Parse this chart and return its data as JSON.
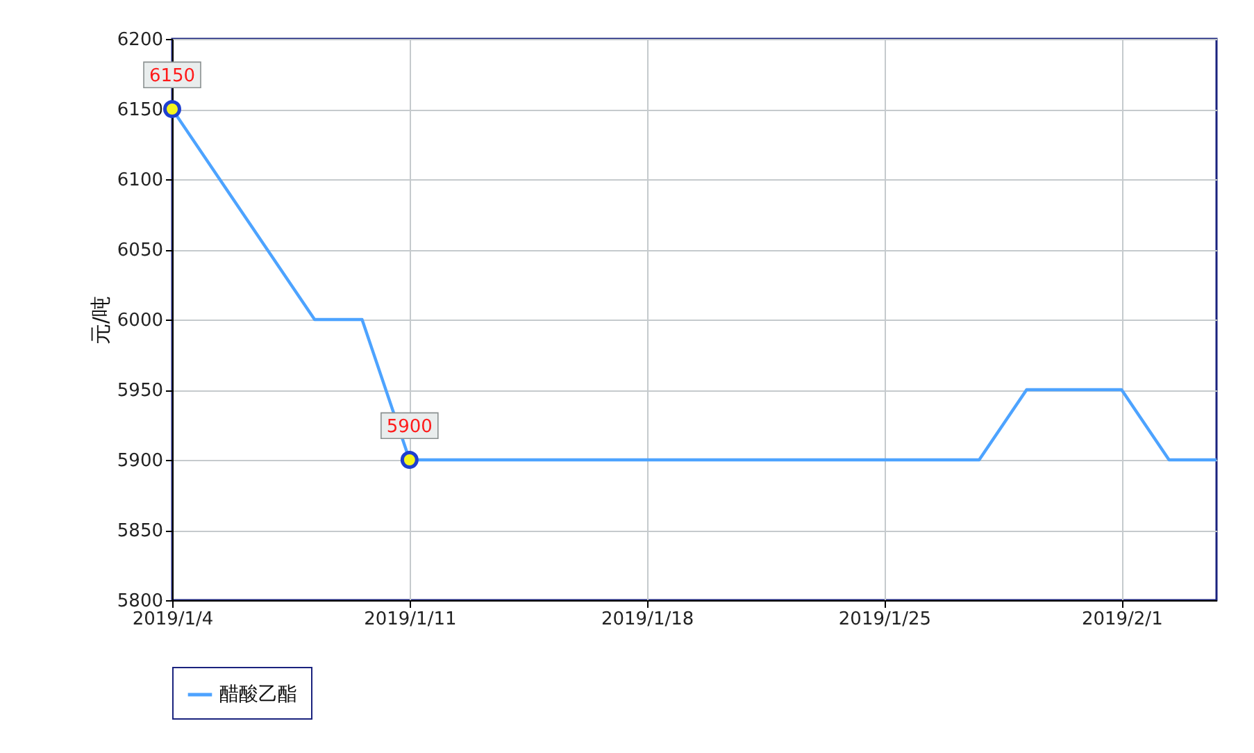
{
  "chart_data": {
    "type": "line",
    "ylabel": "元/吨",
    "categories": [
      "2019/1/4",
      null,
      null,
      null,
      null,
      "2019/1/11",
      null,
      null,
      null,
      null,
      "2019/1/18",
      null,
      null,
      null,
      null,
      "2019/1/25",
      null,
      null,
      null,
      null,
      "2019/2/1",
      null,
      null
    ],
    "series": [
      {
        "name": "醋酸乙酯",
        "color": "#4da3ff",
        "values": [
          6150,
          6100,
          6050,
          6000,
          6000,
          5900,
          5900,
          5900,
          5900,
          5900,
          5900,
          5900,
          5900,
          5900,
          5900,
          5900,
          5900,
          5900,
          5950,
          5950,
          5950,
          5900,
          5900
        ]
      }
    ],
    "ylim": [
      5800,
      6200
    ],
    "yticks": [
      5800,
      5850,
      5900,
      5950,
      6000,
      6050,
      6100,
      6150,
      6200
    ],
    "grid": true,
    "legend": "bottom",
    "line_style": "solid",
    "annotations": [
      {
        "text": "6150",
        "x": "2019/1/4",
        "y": 6150
      },
      {
        "text": "5900",
        "x": "2019/1/11",
        "y": 5900
      }
    ]
  }
}
